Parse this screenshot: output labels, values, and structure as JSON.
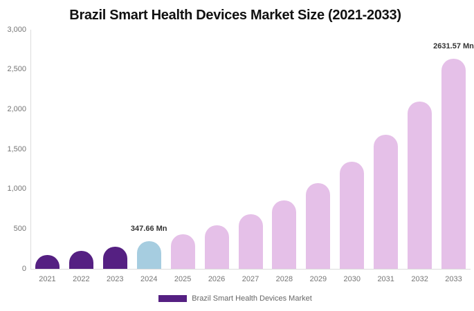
{
  "title": "Brazil Smart Health Devices Market Size (2021-2033)",
  "legend": {
    "label": "Brazil Smart Health Devices Market",
    "swatch_color": "#552082"
  },
  "colors": {
    "historical_bar": "#552082",
    "base_year_bar": "#a6cde0",
    "forecast_bar": "#e5c0e8",
    "title_text": "#111111",
    "axis_label": "#757575",
    "axis_line": "#dcdcdc",
    "annotation_text": "#333333"
  },
  "chart_data": {
    "type": "bar",
    "title": "Brazil Smart Health Devices Market Size (2021-2033)",
    "xlabel": "",
    "ylabel": "",
    "unit": "Mn",
    "categories": [
      "2021",
      "2022",
      "2023",
      "2024",
      "2025",
      "2026",
      "2027",
      "2028",
      "2029",
      "2030",
      "2031",
      "2032",
      "2033"
    ],
    "series": [
      {
        "name": "Brazil Smart Health Devices Market",
        "values": [
          177,
          222,
          278,
          347.66,
          435,
          545,
          683,
          855,
          1071,
          1341,
          1679,
          2102,
          2631.57
        ]
      }
    ],
    "bar_colors": [
      "#552082",
      "#552082",
      "#552082",
      "#a6cde0",
      "#e5c0e8",
      "#e5c0e8",
      "#e5c0e8",
      "#e5c0e8",
      "#e5c0e8",
      "#e5c0e8",
      "#e5c0e8",
      "#e5c0e8",
      "#e5c0e8"
    ],
    "ylim": [
      0,
      3000
    ],
    "ytick_interval": 500,
    "ytick_labels": [
      "0",
      "500",
      "1,000",
      "1,500",
      "2,000",
      "2,500",
      "3,000"
    ],
    "grid": false,
    "legend_position": "bottom",
    "data_labels": [
      {
        "category": "2024",
        "text": "347.66 Mn"
      },
      {
        "category": "2033",
        "text": "2631.57 Mn"
      }
    ]
  }
}
